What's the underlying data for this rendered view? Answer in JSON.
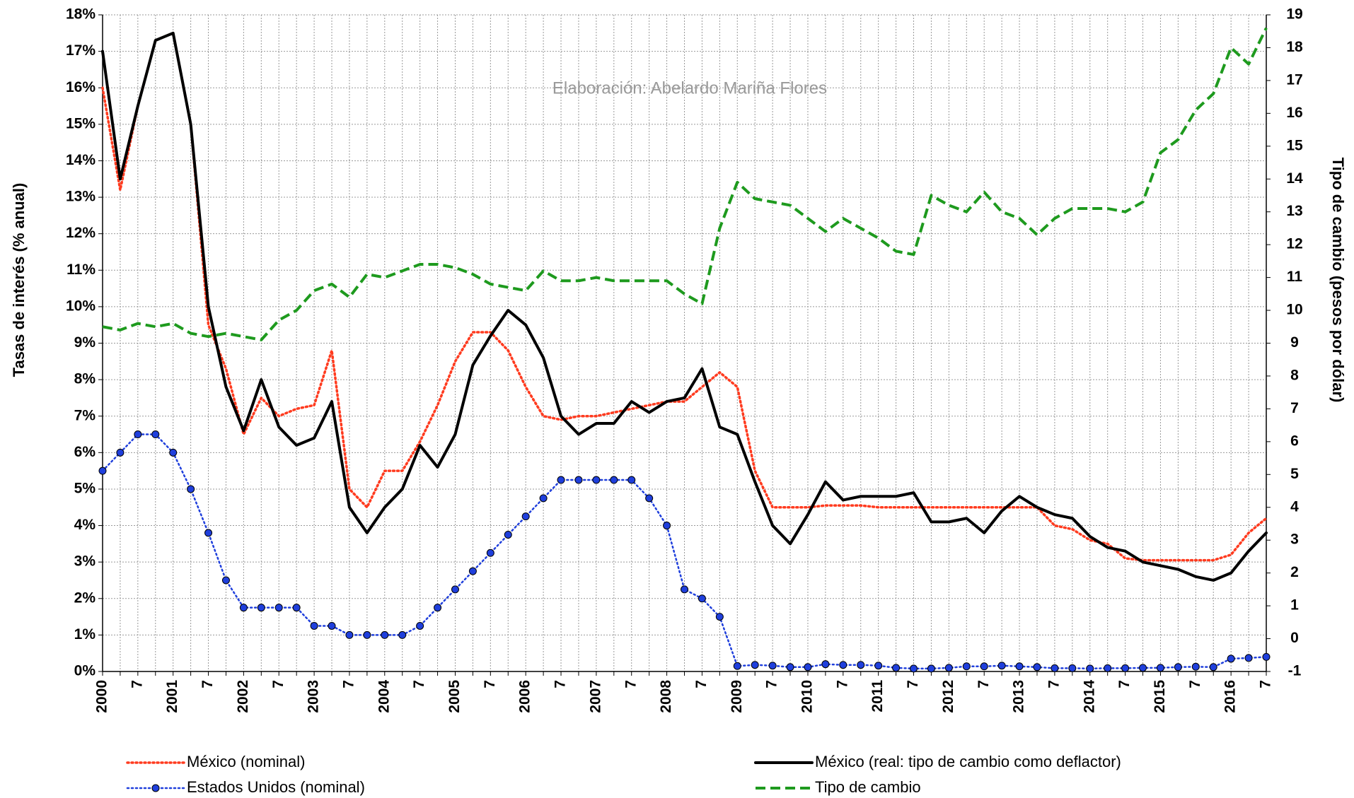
{
  "chart_data": {
    "type": "line",
    "annotation": "Elaboración: Abelardo Mariña Flores",
    "y_label": "Tasas de interés (% anual)",
    "y2_label": "Tipo de cambio (pesos por dólar)",
    "categories": [
      "2000",
      null,
      "7",
      null,
      "2001",
      null,
      "7",
      null,
      "2002",
      null,
      "7",
      null,
      "2003",
      null,
      "7",
      null,
      "2004",
      null,
      "7",
      null,
      "2005",
      null,
      "7",
      null,
      "2006",
      null,
      "7",
      null,
      "2007",
      null,
      "7",
      null,
      "2008",
      null,
      "7",
      null,
      "2009",
      null,
      "7",
      null,
      "2010",
      null,
      "7",
      null,
      "2011",
      null,
      "7",
      null,
      "2012",
      null,
      "7",
      null,
      "2013",
      null,
      "7",
      null,
      "2014",
      null,
      "7",
      null,
      "2015",
      null,
      "7",
      null,
      "2016",
      null,
      "7"
    ],
    "ylim": [
      0,
      18
    ],
    "yticks": [
      {
        "value": 0,
        "label": "0%"
      },
      {
        "value": 1,
        "label": "1%"
      },
      {
        "value": 2,
        "label": "2%"
      },
      {
        "value": 3,
        "label": "3%"
      },
      {
        "value": 4,
        "label": "4%"
      },
      {
        "value": 5,
        "label": "5%"
      },
      {
        "value": 6,
        "label": "6%"
      },
      {
        "value": 7,
        "label": "7%"
      },
      {
        "value": 8,
        "label": "8%"
      },
      {
        "value": 9,
        "label": "9%"
      },
      {
        "value": 10,
        "label": "10%"
      },
      {
        "value": 11,
        "label": "11%"
      },
      {
        "value": 12,
        "label": "12%"
      },
      {
        "value": 13,
        "label": "13%"
      },
      {
        "value": 14,
        "label": "14%"
      },
      {
        "value": 15,
        "label": "15%"
      },
      {
        "value": 16,
        "label": "16%"
      },
      {
        "value": 17,
        "label": "17%"
      },
      {
        "value": 18,
        "label": "18%"
      }
    ],
    "y2lim": [
      -1,
      19
    ],
    "y2ticks": [
      -1,
      0,
      1,
      2,
      3,
      4,
      5,
      6,
      7,
      8,
      9,
      10,
      11,
      12,
      13,
      14,
      15,
      16,
      17,
      18,
      19
    ],
    "grid": true,
    "legend": "bottom",
    "series": [
      {
        "name": "México (nominal)",
        "color": "#ff3b1f",
        "style": "dotted",
        "values": [
          16,
          13.2,
          15.5,
          17.3,
          17.5,
          15,
          9.5,
          8.3,
          6.5,
          7.5,
          7.0,
          7.2,
          7.3,
          8.8,
          5.0,
          4.5,
          5.5,
          5.5,
          6.3,
          7.3,
          8.5,
          9.3,
          9.3,
          8.8,
          7.8,
          7.0,
          6.9,
          7.0,
          7.0,
          7.1,
          7.2,
          7.3,
          7.4,
          7.4,
          7.8,
          8.2,
          7.8,
          5.5,
          4.5,
          4.5,
          4.5,
          4.55,
          4.55,
          4.55,
          4.5,
          4.5,
          4.5,
          4.5,
          4.5,
          4.5,
          4.5,
          4.5,
          4.5,
          4.5,
          4.0,
          3.9,
          3.6,
          3.5,
          3.1,
          3.05,
          3.05,
          3.05,
          3.05,
          3.05,
          3.2,
          3.8,
          4.2
        ]
      },
      {
        "name": "Estados Unidos (nominal)",
        "color": "#1f3fdc",
        "style": "dotted-markers",
        "values": [
          5.5,
          6.0,
          6.5,
          6.5,
          6.0,
          5.0,
          3.8,
          2.5,
          1.75,
          1.75,
          1.75,
          1.75,
          1.25,
          1.25,
          1.0,
          1.0,
          1.0,
          1.0,
          1.25,
          1.75,
          2.25,
          2.75,
          3.25,
          3.75,
          4.25,
          4.75,
          5.25,
          5.25,
          5.25,
          5.25,
          5.25,
          4.75,
          4.0,
          2.25,
          2.0,
          1.5,
          0.15,
          0.18,
          0.16,
          0.12,
          0.12,
          0.2,
          0.18,
          0.18,
          0.16,
          0.1,
          0.08,
          0.08,
          0.1,
          0.14,
          0.14,
          0.16,
          0.14,
          0.12,
          0.09,
          0.09,
          0.08,
          0.09,
          0.09,
          0.1,
          0.1,
          0.12,
          0.13,
          0.12,
          0.35,
          0.37,
          0.4
        ]
      },
      {
        "name": "México (real: tipo de cambio como deflactor)",
        "color": "#000000",
        "style": "solid",
        "values": [
          17,
          13.5,
          15.5,
          17.3,
          17.5,
          15,
          10,
          7.8,
          6.6,
          8.0,
          6.7,
          6.2,
          6.4,
          7.4,
          4.5,
          3.8,
          4.5,
          5.0,
          6.2,
          5.6,
          6.5,
          8.4,
          9.2,
          9.9,
          9.5,
          8.6,
          7.0,
          6.5,
          6.8,
          6.8,
          7.4,
          7.1,
          7.4,
          7.5,
          8.3,
          6.7,
          6.5,
          5.2,
          4.0,
          3.5,
          4.3,
          5.2,
          4.7,
          4.8,
          4.8,
          4.8,
          4.9,
          4.1,
          4.1,
          4.2,
          3.8,
          4.4,
          4.8,
          4.5,
          4.3,
          4.2,
          3.7,
          3.4,
          3.3,
          3.0,
          2.9,
          2.8,
          2.6,
          2.5,
          2.7,
          3.3,
          3.8
        ]
      },
      {
        "name": "Tipo de cambio",
        "color": "#1e9a1e",
        "style": "dashed",
        "axis": "y2",
        "values": [
          9.5,
          9.4,
          9.6,
          9.5,
          9.6,
          9.3,
          9.2,
          9.3,
          9.2,
          9.1,
          9.7,
          10.0,
          10.6,
          10.8,
          10.4,
          11.1,
          11.0,
          11.2,
          11.4,
          11.4,
          11.3,
          11.1,
          10.8,
          10.7,
          10.6,
          11.2,
          10.9,
          10.9,
          11.0,
          10.9,
          10.9,
          10.9,
          10.9,
          10.5,
          10.2,
          12.5,
          13.9,
          13.4,
          13.3,
          13.2,
          12.8,
          12.4,
          12.8,
          12.5,
          12.2,
          11.8,
          11.7,
          13.5,
          13.2,
          13.0,
          13.6,
          13.0,
          12.8,
          12.3,
          12.8,
          13.1,
          13.1,
          13.1,
          13.0,
          13.3,
          14.8,
          15.2,
          16.1,
          16.6,
          18.0,
          17.5,
          18.6
        ]
      }
    ]
  }
}
